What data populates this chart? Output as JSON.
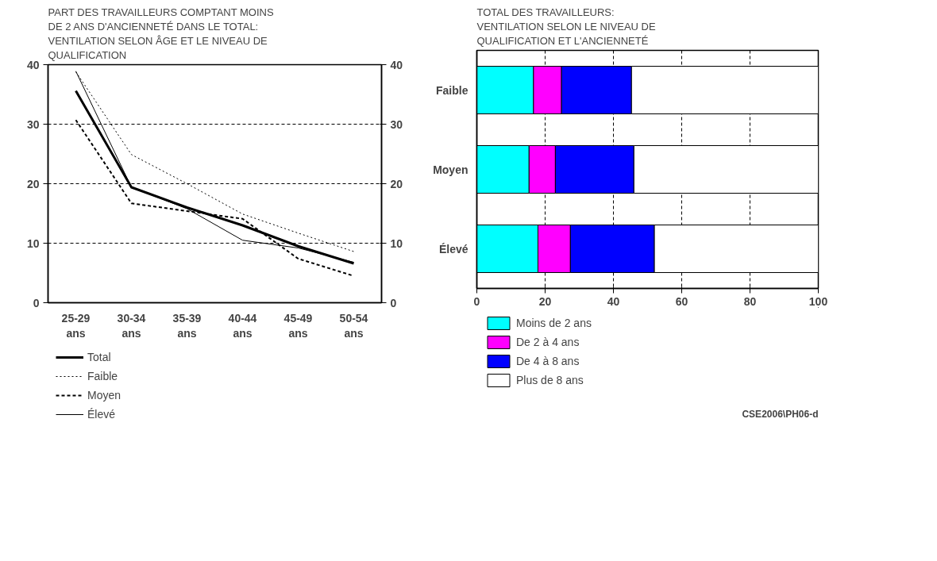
{
  "chart_data": [
    {
      "type": "line",
      "title": "PART DES TRAVAILLEURS COMPTANT MOINS\nDE 2 ANS D'ANCIENNETÉ DANS LE TOTAL:\nVENTILATION SELON ÂGE ET LE NIVEAU DE\nQUALIFICATION",
      "categories": [
        "25-29\nans",
        "30-34\nans",
        "35-39\nans",
        "40-44\nans",
        "45-49\nans",
        "50-54\nans"
      ],
      "ylim": [
        0,
        40
      ],
      "yticks": [
        0,
        10,
        20,
        30,
        40
      ],
      "y2lim": [
        0,
        40
      ],
      "y2ticks": [
        0,
        10,
        20,
        30,
        40
      ],
      "grid": "y",
      "legend": "bottom",
      "series": [
        {
          "name": "Total",
          "color": "#000000",
          "line_style": "solid",
          "values": [
            35.6,
            19.4,
            16.0,
            13.0,
            9.5,
            6.6
          ]
        },
        {
          "name": "Faible",
          "color": "#000000",
          "line_style": "dotted",
          "values": [
            38.8,
            24.9,
            20.0,
            14.9,
            11.7,
            8.6
          ]
        },
        {
          "name": "Moyen",
          "color": "#000000",
          "line_style": "dashed",
          "values": [
            30.7,
            16.7,
            15.4,
            14.1,
            7.4,
            4.5
          ]
        },
        {
          "name": "Élevé",
          "color": "#000000",
          "line_style": "solid",
          "values": [
            38.9,
            19.4,
            15.8,
            10.5,
            9.2,
            6.8
          ]
        }
      ]
    },
    {
      "type": "bar",
      "orientation": "horizontal",
      "stacked": true,
      "title": "TOTAL DES TRAVAILLEURS:\nVENTILATION SELON LE NIVEAU DE\nQUALIFICATION ET L'ANCIENNETÉ",
      "categories": [
        "Faible",
        "Moyen",
        "Élevé"
      ],
      "xlim": [
        0,
        100
      ],
      "xticks": [
        0,
        20,
        40,
        60,
        80,
        100
      ],
      "grid": "x",
      "legend": "bottom",
      "annotations": [
        "CSE2006\\PH06-d"
      ],
      "series": [
        {
          "name": "Moins de 2 ans",
          "color": "#00ffff",
          "values": [
            16.6,
            15.3,
            17.9
          ]
        },
        {
          "name": "De 2 à 4 ans",
          "color": "#ff00ff",
          "values": [
            8.2,
            7.7,
            9.5
          ]
        },
        {
          "name": "De 4 à 8 ans",
          "color": "#0000ff",
          "values": [
            20.5,
            23.0,
            24.6
          ]
        },
        {
          "name": "Plus de 8 ans",
          "color": "#ffffff",
          "values": [
            54.7,
            54.0,
            48.0
          ]
        }
      ]
    }
  ]
}
